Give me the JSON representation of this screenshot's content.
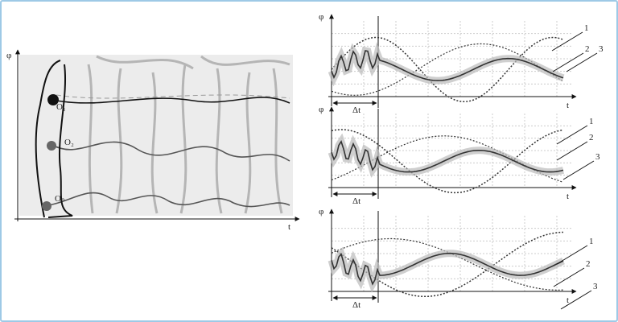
{
  "left_panel": {
    "y_axis_label": "φ",
    "x_axis_label": "t",
    "points": [
      "O₁",
      "O₂",
      "Oₙ"
    ]
  },
  "right_panels": [
    {
      "y_axis_label": "φ",
      "x_axis_label": "t",
      "interval_label": "Δt",
      "curve_labels": [
        "1",
        "2",
        "3"
      ]
    },
    {
      "y_axis_label": "φ",
      "x_axis_label": "t",
      "interval_label": "Δt",
      "curve_labels": [
        "1",
        "2",
        "3"
      ]
    },
    {
      "y_axis_label": "φ",
      "x_axis_label": "t",
      "interval_label": "Δt",
      "curve_labels": [
        "1",
        "2",
        "3"
      ]
    }
  ]
}
